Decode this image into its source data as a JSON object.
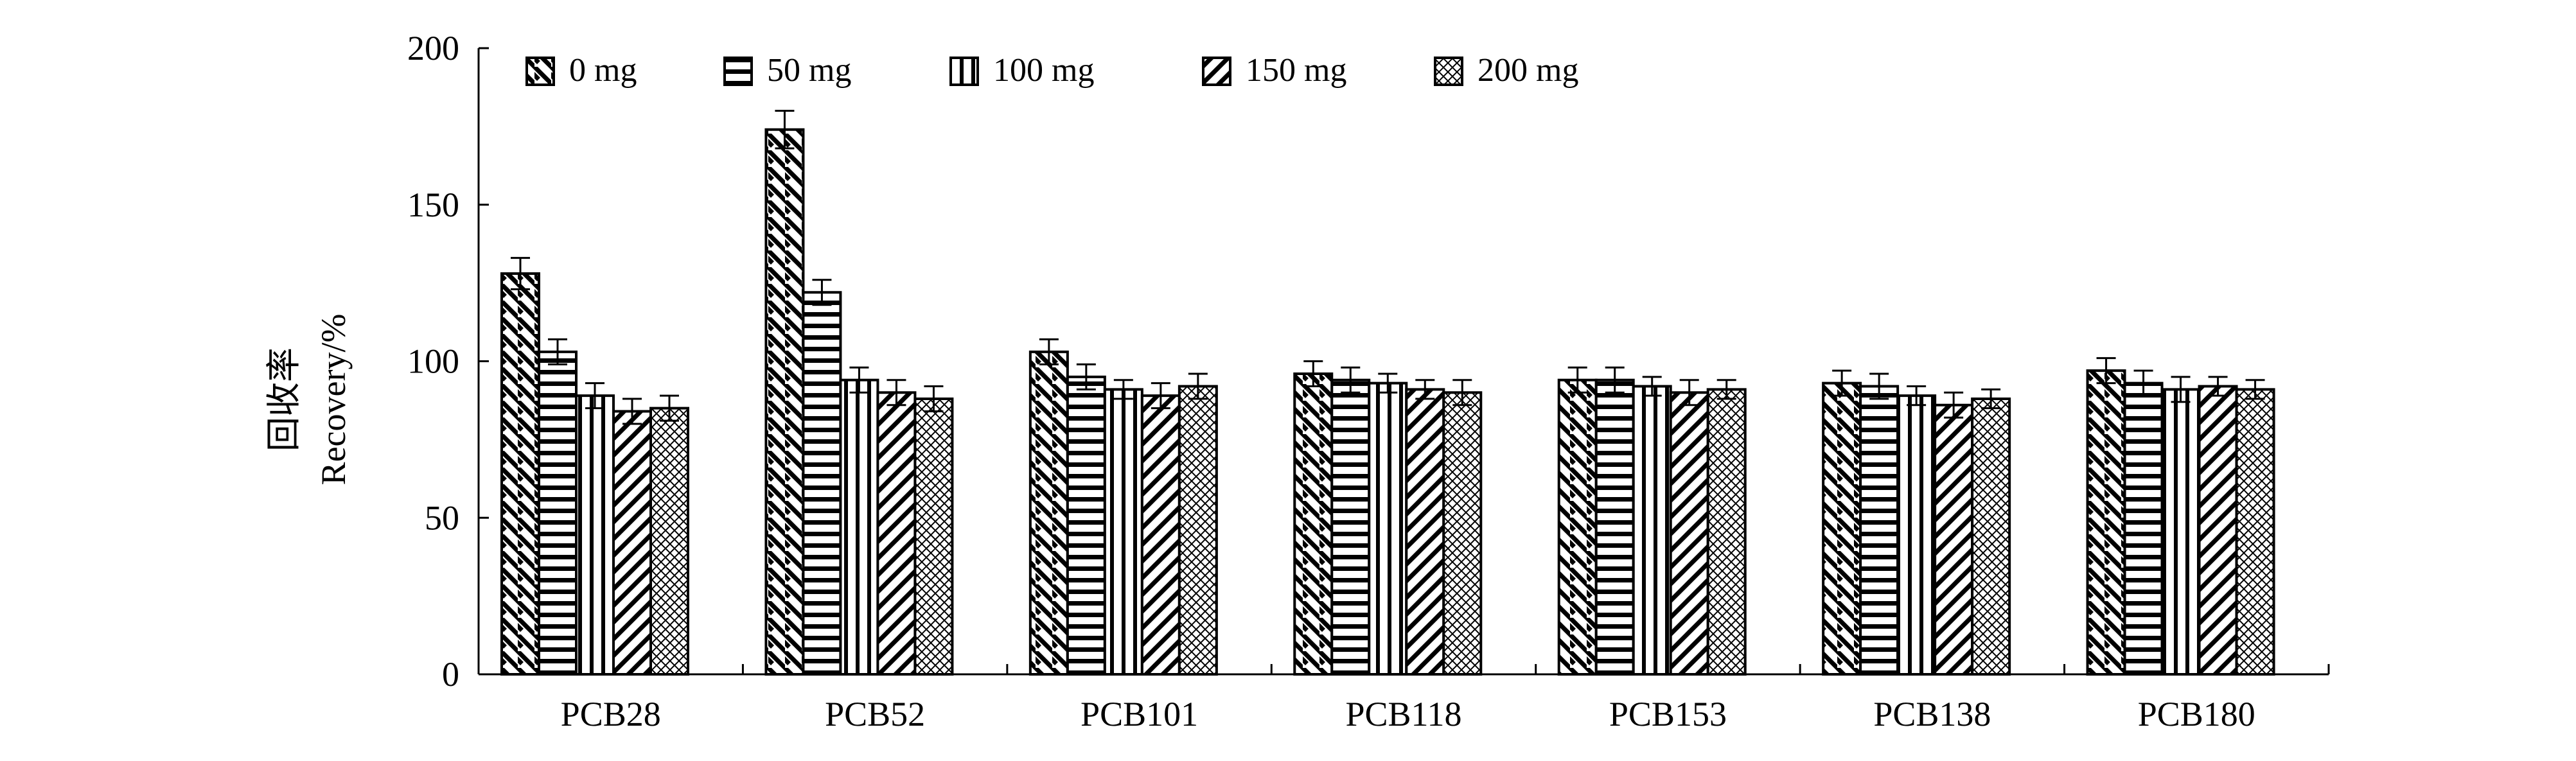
{
  "chart_data": {
    "type": "bar",
    "title": "",
    "xlabel": "",
    "ylabel_cn": "回收率",
    "ylabel": "Recovery/%",
    "ylim": [
      0,
      200
    ],
    "yticks": [
      0,
      50,
      100,
      150,
      200
    ],
    "categories": [
      "PCB28",
      "PCB52",
      "PCB101",
      "PCB118",
      "PCB153",
      "PCB138",
      "PCB180"
    ],
    "legend_position": "top-left",
    "grid": false,
    "series": [
      {
        "name": "0 mg",
        "pattern": "back-diagonal",
        "values": [
          128,
          174,
          103,
          96,
          94,
          93,
          97
        ],
        "errors": [
          5,
          6,
          4,
          4,
          4,
          4,
          4
        ]
      },
      {
        "name": "50 mg",
        "pattern": "horizontal",
        "values": [
          103,
          122,
          95,
          94,
          94,
          92,
          93
        ],
        "errors": [
          4,
          4,
          4,
          4,
          4,
          4,
          4
        ]
      },
      {
        "name": "100 mg",
        "pattern": "vertical",
        "values": [
          89,
          94,
          91,
          93,
          92,
          89,
          91
        ],
        "errors": [
          4,
          4,
          3,
          3,
          3,
          3,
          4
        ]
      },
      {
        "name": "150 mg",
        "pattern": "forward-diagonal",
        "values": [
          84,
          90,
          89,
          91,
          90,
          86,
          92
        ],
        "errors": [
          4,
          4,
          4,
          3,
          4,
          4,
          3
        ]
      },
      {
        "name": "200 mg",
        "pattern": "cross-hatch",
        "values": [
          85,
          88,
          92,
          90,
          91,
          88,
          91
        ],
        "errors": [
          4,
          4,
          4,
          4,
          3,
          3,
          3
        ]
      }
    ]
  }
}
